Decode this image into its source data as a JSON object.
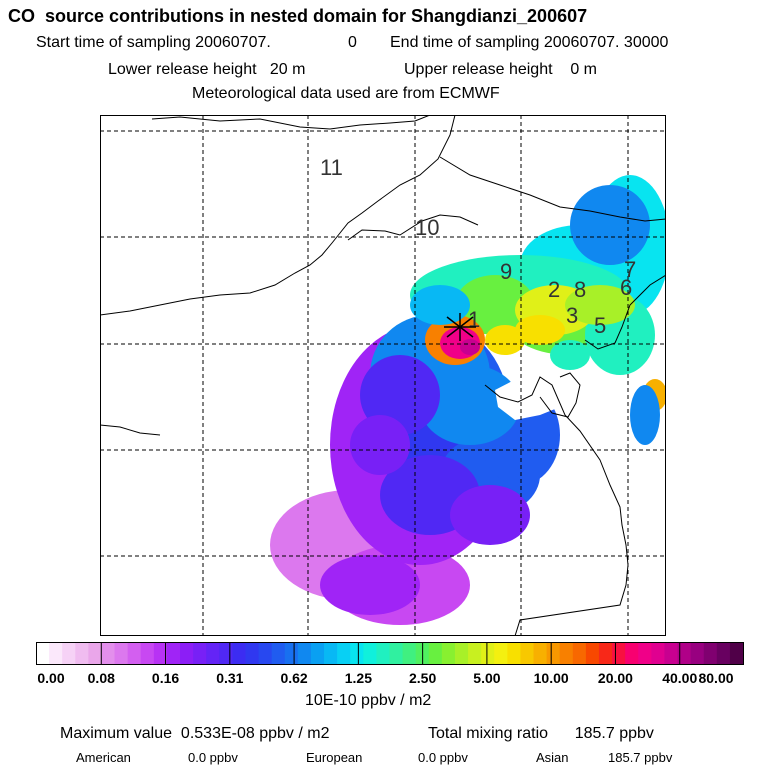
{
  "header": {
    "title": "CO  source contributions in nested domain for Shangdianzi_200607",
    "start_sampling": "Start time of sampling 20060707.",
    "start_value": "0",
    "end_sampling": "End time of sampling 20060707. 30000",
    "lower_release": "Lower release height   20 m",
    "upper_release": "Upper release height    0 m",
    "met_data": "Meteorological data used are from ECMWF"
  },
  "map": {
    "contour_labels": [
      "11",
      "10",
      "9",
      "2",
      "8",
      "7",
      "6",
      "1",
      "3",
      "5"
    ],
    "source_marker": "+"
  },
  "chart_data": {
    "type": "heatmap",
    "title": "CO  source contributions in nested domain for Shangdianzi_200607",
    "colorbar_ticks": [
      "0.00",
      "0.08",
      "0.16",
      "0.31",
      "0.62",
      "1.25",
      "2.50",
      "5.00",
      "10.00",
      "20.00",
      "40.00",
      "80.00"
    ],
    "colorbar_units": "10E-10 ppbv / m2",
    "colors": [
      "#ffffff",
      "#fbe8fb",
      "#f6d2f6",
      "#f0bcf0",
      "#eaa6ea",
      "#e38fec",
      "#dc78ee",
      "#d35ff0",
      "#c848f2",
      "#b832f4",
      "#a024f6",
      "#8c1ef6",
      "#7820f6",
      "#6424f6",
      "#5028f4",
      "#3c2cf2",
      "#3038f0",
      "#2848f0",
      "#205cf0",
      "#1870f0",
      "#1088f0",
      "#0aa0f2",
      "#08b8f4",
      "#08d0f4",
      "#08e4f0",
      "#10f0dc",
      "#20f0c0",
      "#30f0a0",
      "#40f080",
      "#50f060",
      "#68f040",
      "#88f030",
      "#a8f028",
      "#c8f020",
      "#e0f018",
      "#f4f010",
      "#f8e000",
      "#f8c800",
      "#f8b000",
      "#f89800",
      "#f88000",
      "#f86800",
      "#f84800",
      "#f82818",
      "#f81040",
      "#f80070",
      "#f00088",
      "#e00090",
      "#c80090",
      "#b00088",
      "#980080",
      "#800070",
      "#680060",
      "#500048"
    ],
    "series": [
      {
        "name": "American",
        "value": 0.0
      },
      {
        "name": "European",
        "value": 0.0
      },
      {
        "name": "Asian",
        "value": 185.7
      }
    ]
  },
  "stats": {
    "max_value": "Maximum value  0.533E-08 ppbv / m2",
    "total_mixing": "Total mixing ratio      185.7 ppbv",
    "american_label": "American",
    "american_value": "0.0 ppbv",
    "european_label": "European",
    "european_value": "0.0 ppbv",
    "asian_label": "Asian",
    "asian_value": "185.7 ppbv"
  }
}
